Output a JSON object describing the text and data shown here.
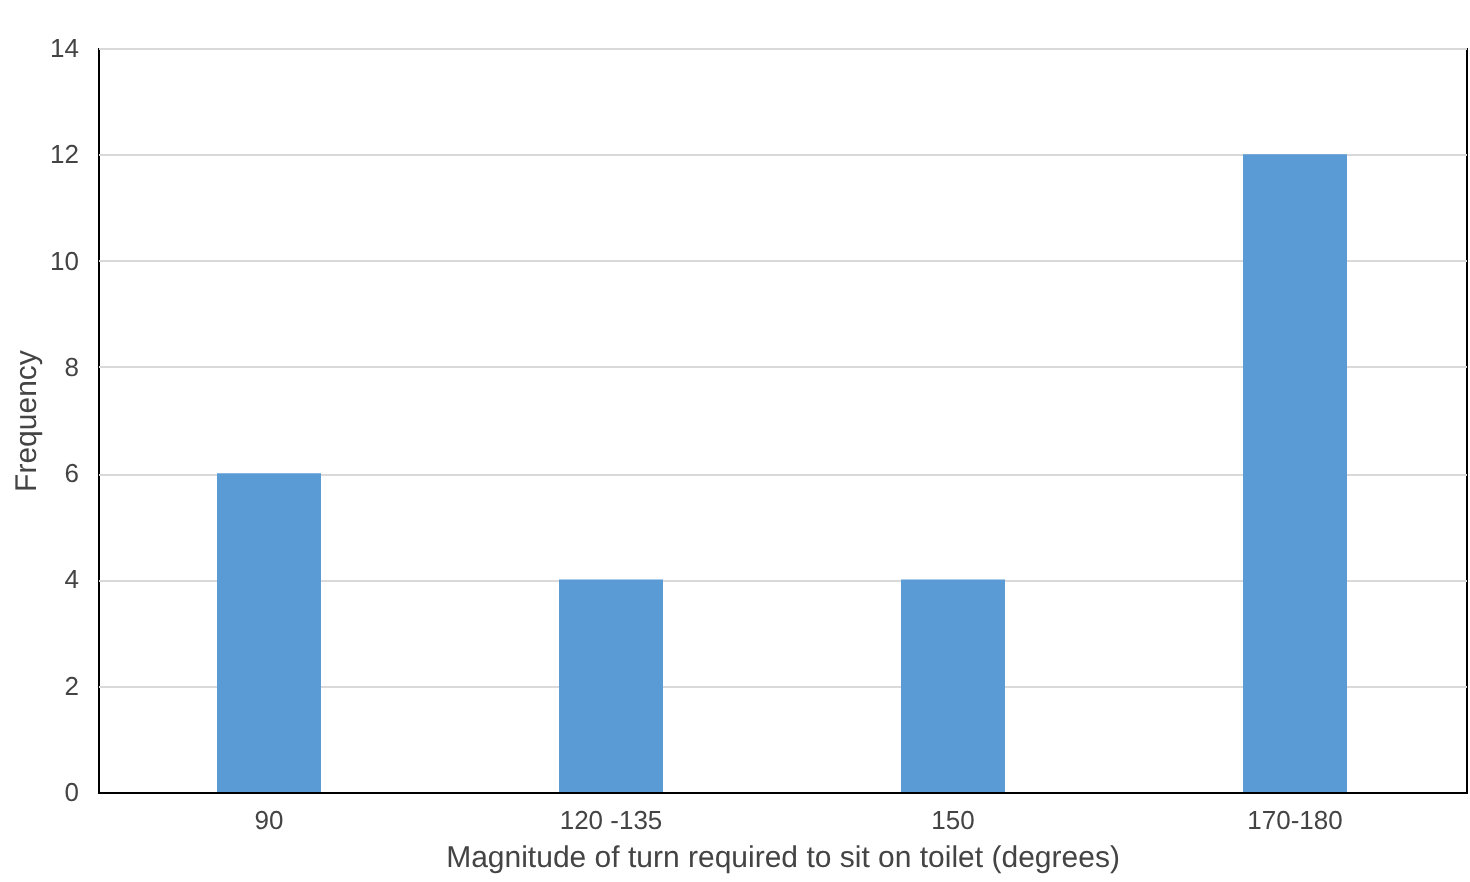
{
  "chart_data": {
    "type": "bar",
    "xlabel": "Magnitude of turn required to sit on toilet (degrees)",
    "ylabel": "Frequency",
    "categories": [
      "90",
      "120 -135",
      "150",
      "170-180"
    ],
    "values": [
      6,
      4,
      4,
      12
    ],
    "color": "#5b9bd5",
    "ylim": [
      0,
      14
    ],
    "yticks": [
      0,
      2,
      4,
      6,
      8,
      10,
      12,
      14
    ],
    "grid": "y"
  }
}
